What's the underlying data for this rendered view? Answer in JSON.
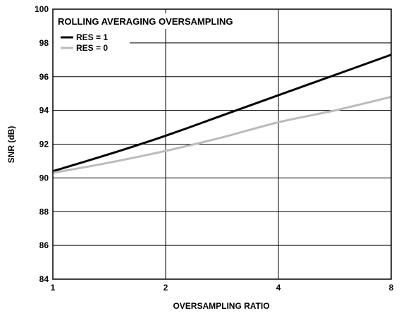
{
  "chart_data": {
    "type": "line",
    "title": "ROLLING AVERAGING OVERSAMPLING",
    "xlabel": "OVERSAMPLING RATIO",
    "ylabel": "SNR (dB)",
    "x_scale": "log2",
    "xlim": [
      1,
      8
    ],
    "ylim": [
      84,
      100
    ],
    "x_ticks": [
      1,
      2,
      4,
      8
    ],
    "y_ticks": [
      84,
      86,
      88,
      90,
      92,
      94,
      96,
      98,
      100
    ],
    "grid": true,
    "legend_position": "top-left",
    "series": [
      {
        "name": "RES = 1",
        "color": "#000000",
        "x": [
          1,
          1.41,
          2,
          2.83,
          4,
          5.66,
          8
        ],
        "y": [
          90.4,
          91.4,
          92.5,
          93.7,
          94.9,
          96.1,
          97.3
        ]
      },
      {
        "name": "RES = 0",
        "color": "#bbbbbb",
        "x": [
          1,
          1.41,
          2,
          2.83,
          4,
          5.66,
          8
        ],
        "y": [
          90.3,
          90.9,
          91.6,
          92.4,
          93.3,
          94.0,
          94.8
        ]
      }
    ]
  }
}
